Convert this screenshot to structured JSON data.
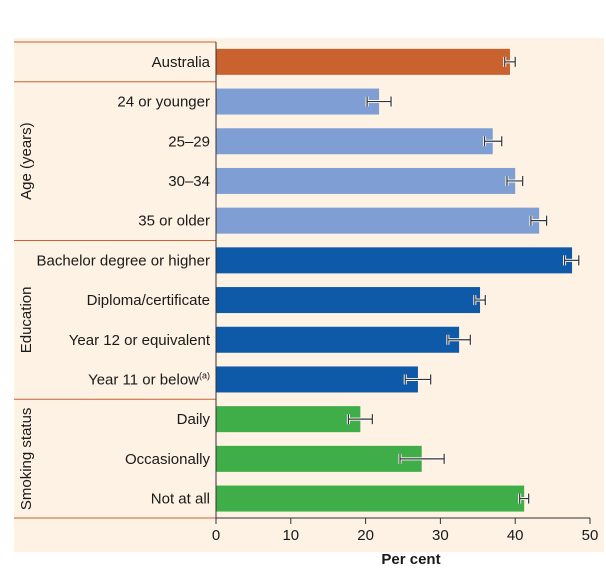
{
  "chart_data": {
    "type": "bar",
    "orientation": "horizontal",
    "xlabel": "Per cent",
    "xlim": [
      0,
      50
    ],
    "xticks": [
      0,
      10,
      20,
      30,
      40,
      50
    ],
    "grid": false,
    "background_color": "#fdf2e4",
    "groups": [
      {
        "label": "",
        "color": "#c9622f",
        "bars": [
          {
            "label": "Australia",
            "value": 39.3,
            "err_low": 38.6,
            "err_high": 40.0
          }
        ]
      },
      {
        "label": "Age (years)",
        "color": "#7f9fd4",
        "bars": [
          {
            "label": "24 or younger",
            "value": 21.8,
            "err_low": 20.2,
            "err_high": 23.4
          },
          {
            "label": "25–29",
            "value": 37.0,
            "err_low": 35.9,
            "err_high": 38.2
          },
          {
            "label": "30–34",
            "value": 40.0,
            "err_low": 38.9,
            "err_high": 41.0
          },
          {
            "label": "35 or older",
            "value": 43.2,
            "err_low": 42.1,
            "err_high": 44.2
          }
        ]
      },
      {
        "label": "Education",
        "color": "#0e5aa8",
        "bars": [
          {
            "label": "Bachelor degree or higher",
            "value": 47.6,
            "err_low": 46.6,
            "err_high": 48.5
          },
          {
            "label": "Diploma/certificate",
            "value": 35.3,
            "err_low": 34.6,
            "err_high": 36.0
          },
          {
            "label": "Year 12 or equivalent",
            "value": 32.5,
            "err_low": 31.0,
            "err_high": 34.0
          },
          {
            "label": "Year 11 or below",
            "label_sup": "(a)",
            "value": 27.0,
            "err_low": 25.3,
            "err_high": 28.7
          }
        ]
      },
      {
        "label": "Smoking status",
        "color": "#3fae49",
        "bars": [
          {
            "label": "Daily",
            "value": 19.3,
            "err_low": 17.7,
            "err_high": 20.9
          },
          {
            "label": "Occasionally",
            "value": 27.5,
            "err_low": 24.6,
            "err_high": 30.5
          },
          {
            "label": "Not at all",
            "value": 41.2,
            "err_low": 40.6,
            "err_high": 41.8
          }
        ]
      }
    ]
  }
}
